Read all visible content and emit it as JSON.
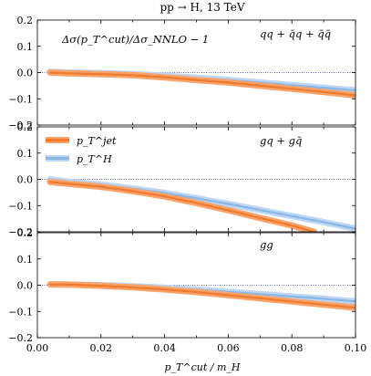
{
  "chart_data": {
    "type": "line",
    "title": "pp → H, 13 TeV",
    "xlabel": "p_T^cut / m_H",
    "ylabel_annotation": "Δσ(p_T^cut)/Δσ_NNLO − 1",
    "xlim": [
      0.0,
      0.1
    ],
    "xticks": [
      "0.00",
      "0.02",
      "0.04",
      "0.06",
      "0.08",
      "0.10"
    ],
    "yticks": [
      "−0.2",
      "−0.1",
      "0.0",
      "0.1",
      "0.2"
    ],
    "legend": {
      "placement": "top-left of middle panel",
      "entries": [
        "p_T^jet",
        "p_T^H"
      ]
    },
    "colors": {
      "jet": "#f07a2e",
      "jet_band": "#f9a36a",
      "H": "#8ab6e6",
      "H_band": "#bcd6f4"
    },
    "panels": [
      {
        "label": "qq + q̄q + q̄q̄",
        "ylim": [
          -0.2,
          0.2
        ],
        "series": [
          {
            "name": "p_T^jet",
            "x": [
              0.004,
              0.01,
              0.02,
              0.03,
              0.04,
              0.05,
              0.06,
              0.07,
              0.08,
              0.09,
              0.1
            ],
            "y": [
              0.0,
              -0.003,
              -0.006,
              -0.01,
              -0.018,
              -0.028,
              -0.038,
              -0.05,
              -0.062,
              -0.074,
              -0.087
            ]
          },
          {
            "name": "p_T^H",
            "x": [
              0.004,
              0.01,
              0.02,
              0.03,
              0.04,
              0.05,
              0.06,
              0.07,
              0.08,
              0.09,
              0.1
            ],
            "y": [
              0.002,
              0.0,
              -0.002,
              -0.006,
              -0.012,
              -0.02,
              -0.028,
              -0.038,
              -0.048,
              -0.058,
              -0.068
            ]
          }
        ]
      },
      {
        "label": "gq + gq̄",
        "ylim": [
          -0.2,
          0.2
        ],
        "series": [
          {
            "name": "p_T^jet",
            "x": [
              0.004,
              0.01,
              0.02,
              0.03,
              0.04,
              0.05,
              0.06,
              0.07,
              0.08,
              0.087
            ],
            "y": [
              -0.01,
              -0.017,
              -0.028,
              -0.045,
              -0.065,
              -0.09,
              -0.118,
              -0.147,
              -0.176,
              -0.2
            ]
          },
          {
            "name": "p_T^H",
            "x": [
              0.004,
              0.01,
              0.02,
              0.03,
              0.04,
              0.05,
              0.06,
              0.07,
              0.08,
              0.09,
              0.1
            ],
            "y": [
              0.0,
              -0.01,
              -0.02,
              -0.035,
              -0.052,
              -0.072,
              -0.094,
              -0.117,
              -0.14,
              -0.163,
              -0.188
            ]
          }
        ]
      },
      {
        "label": "gg",
        "ylim": [
          -0.2,
          0.2
        ],
        "series": [
          {
            "name": "p_T^jet",
            "x": [
              0.004,
              0.01,
              0.02,
              0.03,
              0.04,
              0.05,
              0.06,
              0.07,
              0.08,
              0.09,
              0.1
            ],
            "y": [
              0.003,
              0.002,
              -0.002,
              -0.008,
              -0.016,
              -0.026,
              -0.038,
              -0.05,
              -0.062,
              -0.074,
              -0.086
            ]
          },
          {
            "name": "p_T^H",
            "x": [
              0.004,
              0.01,
              0.02,
              0.03,
              0.04,
              0.05,
              0.06,
              0.07,
              0.08,
              0.09,
              0.1
            ],
            "y": [
              0.003,
              0.002,
              0.0,
              -0.004,
              -0.01,
              -0.017,
              -0.025,
              -0.034,
              -0.043,
              -0.052,
              -0.062
            ]
          }
        ]
      }
    ]
  }
}
